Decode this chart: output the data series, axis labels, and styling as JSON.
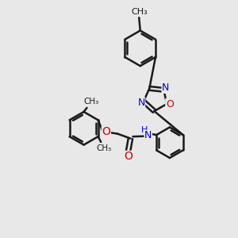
{
  "bg_color": "#e8e8e8",
  "bond_color": "#1a1a1a",
  "N_color": "#0000cc",
  "O_color": "#cc0000",
  "bond_width": 1.8,
  "figsize": [
    3.0,
    3.0
  ],
  "dpi": 100,
  "xlim": [
    0,
    10
  ],
  "ylim": [
    0,
    10
  ]
}
